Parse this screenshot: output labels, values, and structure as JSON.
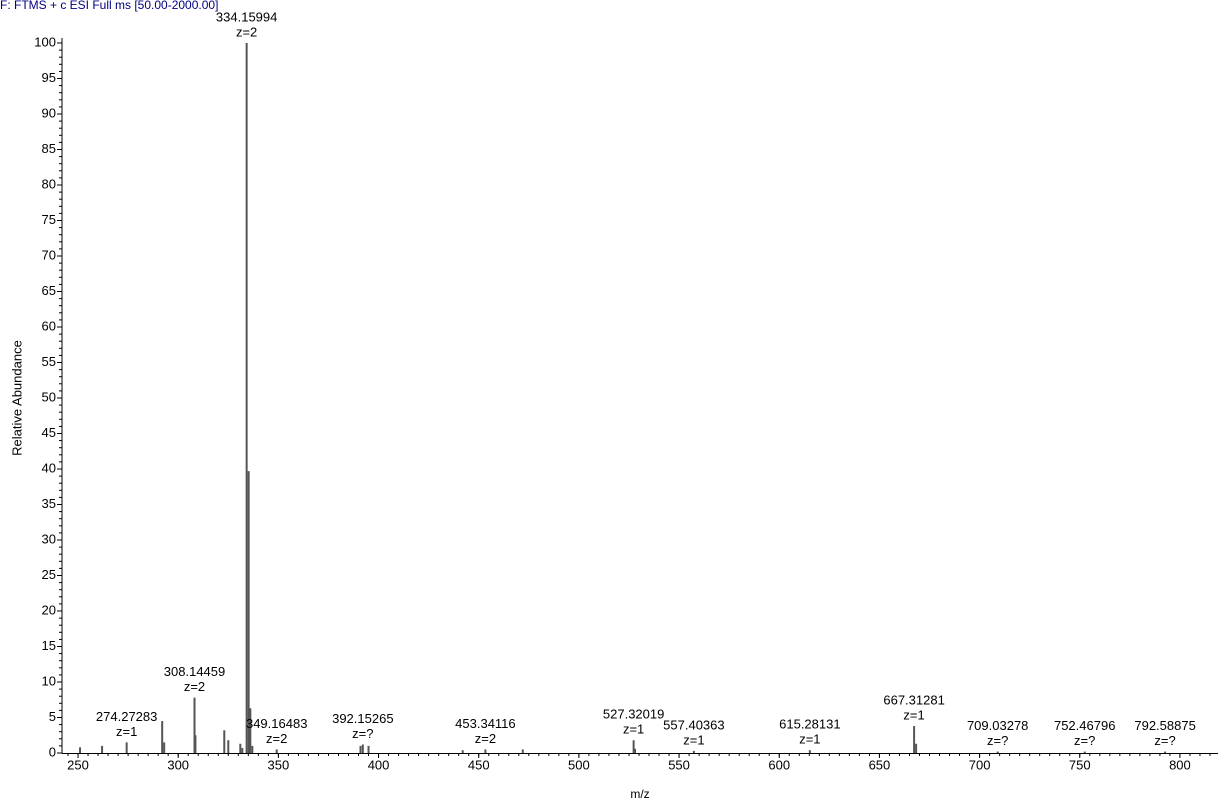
{
  "chart_data": {
    "type": "spectrum",
    "title": "F: FTMS + c ESI Full ms [50.00-2000.00]",
    "x_label": "m/z",
    "y_label": "Relative Abundance",
    "x": [
      251,
      262,
      274.27283,
      292,
      293,
      308.14459,
      308.6,
      323,
      325,
      331,
      332,
      334.15994,
      335.16,
      336,
      337,
      349.16483,
      391,
      392.15265,
      395,
      442,
      453.34116,
      472,
      527.32019,
      528,
      557.40363,
      615.28131,
      667.31281,
      668.3,
      709.03278,
      752.46796,
      792.58875
    ],
    "values": [
      0.8,
      1,
      1.5,
      4.5,
      1.5,
      7.8,
      2.5,
      3.2,
      1.8,
      1.3,
      0.7,
      100,
      39.7,
      6.3,
      1,
      0.5,
      1,
      1.2,
      1,
      0.4,
      0.5,
      0.5,
      1.8,
      0.6,
      0.3,
      0.4,
      3.8,
      1.3,
      0.2,
      0.2,
      0.2
    ],
    "annotations": [
      {
        "x": 274.27283,
        "z": "z=1"
      },
      {
        "x": 308.14459,
        "z": "z=2"
      },
      {
        "x": 334.15994,
        "z": "z=2"
      },
      {
        "x": 349.16483,
        "z": "z=2"
      },
      {
        "x": 392.15265,
        "z": "z=?"
      },
      {
        "x": 453.34116,
        "z": "z=2"
      },
      {
        "x": 527.32019,
        "z": "z=1"
      },
      {
        "x": 557.40363,
        "z": "z=1"
      },
      {
        "x": 615.28131,
        "z": "z=1"
      },
      {
        "x": 667.31281,
        "z": "z=1"
      },
      {
        "x": 709.03278,
        "z": "z=?"
      },
      {
        "x": 752.46796,
        "z": "z=?"
      },
      {
        "x": 792.58875,
        "z": "z=?"
      }
    ],
    "color": "#555555",
    "title_color": "#000080",
    "xlim": [
      242,
      819
    ],
    "ylim": [
      0,
      100
    ],
    "xticks": [
      250,
      300,
      350,
      400,
      450,
      500,
      550,
      600,
      650,
      700,
      750,
      800
    ],
    "yticks": [
      0,
      5,
      10,
      15,
      20,
      25,
      30,
      35,
      40,
      45,
      50,
      55,
      60,
      65,
      70,
      75,
      80,
      85,
      90,
      95,
      100
    ]
  }
}
